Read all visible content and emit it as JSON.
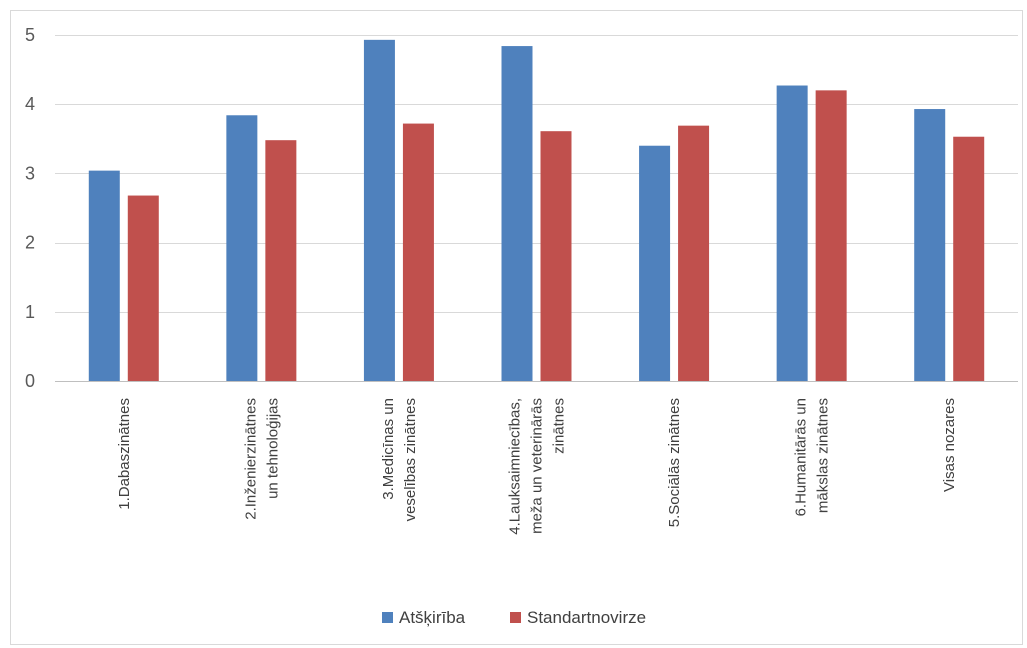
{
  "chart_data": {
    "type": "bar",
    "categories": [
      [
        "1.Dabaszinātnes"
      ],
      [
        "2.Inženierzinātnes",
        "un tehnoloģijas"
      ],
      [
        "3.Medicīnas un",
        "veselības zinātnes"
      ],
      [
        "4.Lauksaimniecības,",
        "meža un veterinārās",
        "zinātnes"
      ],
      [
        "5.Sociālās zinātnes"
      ],
      [
        "6.Humanitārās un",
        "mākslas zinātnes"
      ],
      [
        "Visas nozares"
      ]
    ],
    "series": [
      {
        "name": "Atšķirība",
        "color": "#4F81BD",
        "values": [
          3.04,
          3.84,
          4.93,
          4.84,
          3.4,
          4.27,
          3.93
        ]
      },
      {
        "name": "Standartnovirze",
        "color": "#C0504D",
        "values": [
          2.68,
          3.48,
          3.72,
          3.61,
          3.69,
          4.2,
          3.53
        ]
      }
    ],
    "ylim": [
      0,
      5
    ],
    "yticks": [
      0,
      1,
      2,
      3,
      4,
      5
    ],
    "grid": true,
    "legend_position": "bottom"
  }
}
